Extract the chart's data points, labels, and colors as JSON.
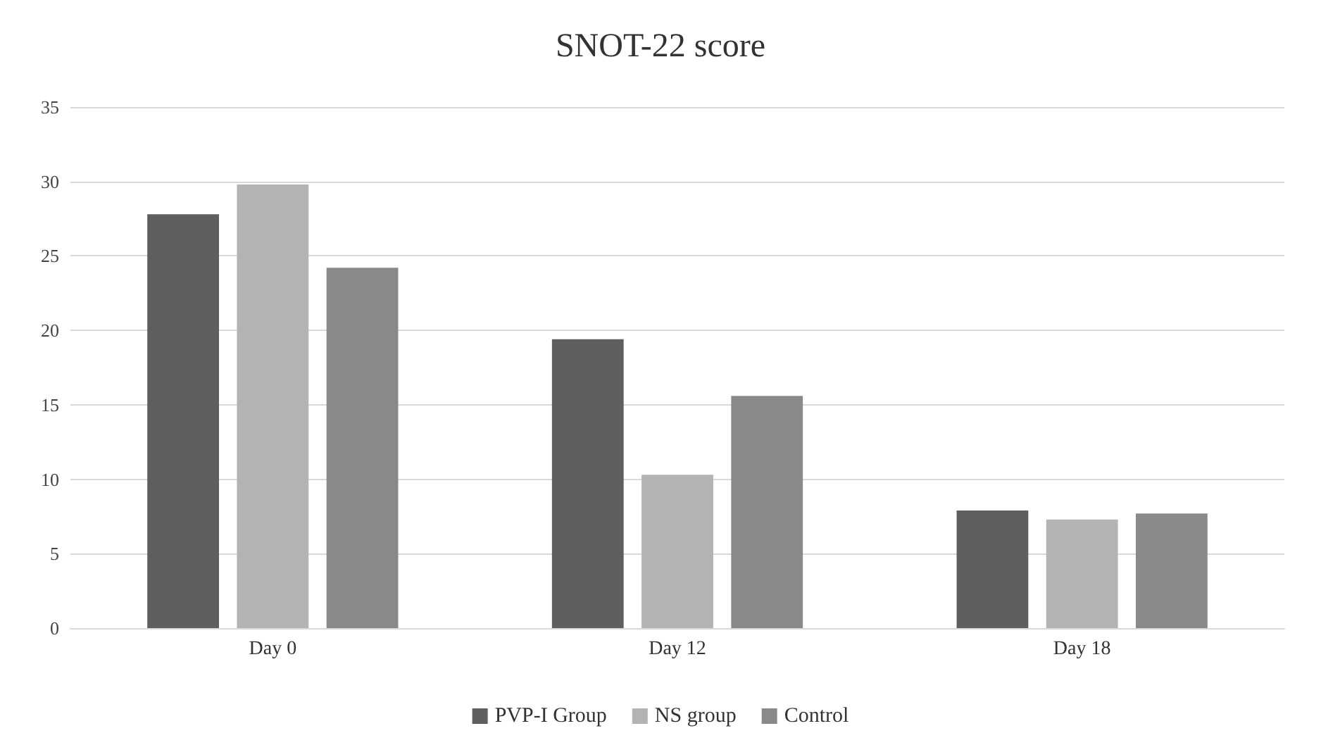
{
  "chart_data": {
    "type": "bar",
    "title": "SNOT-22 score",
    "categories": [
      "Day 0",
      "Day 12",
      "Day 18"
    ],
    "series": [
      {
        "name": "PVP-I Group",
        "color": "#5f5f5f",
        "values": [
          27.8,
          19.4,
          7.9
        ]
      },
      {
        "name": "NS group",
        "color": "#b3b3b3",
        "values": [
          29.8,
          10.3,
          7.3
        ]
      },
      {
        "name": "Control",
        "color": "#898989",
        "values": [
          24.2,
          15.6,
          7.7
        ]
      }
    ],
    "ylim": [
      0,
      35
    ],
    "yticks": [
      0,
      5,
      10,
      15,
      20,
      25,
      30,
      35
    ],
    "grid": "y",
    "legend": "bottom"
  }
}
